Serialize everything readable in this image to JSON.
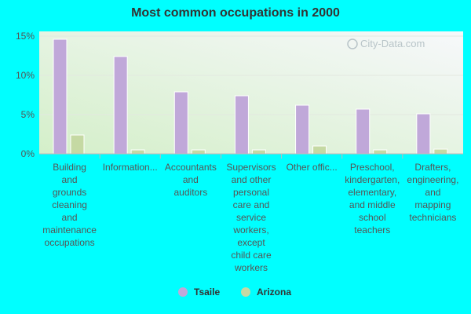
{
  "chart_data": {
    "type": "bar",
    "title": "Most common occupations in 2000",
    "categories": [
      [
        "Building",
        "and",
        "grounds",
        "cleaning",
        "and",
        "maintenance",
        "occupations"
      ],
      [
        "Information..."
      ],
      [
        "Accountants",
        "and",
        "auditors"
      ],
      [
        "Supervisors",
        "and other",
        "personal",
        "care and",
        "service",
        "workers,",
        "except",
        "child care",
        "workers"
      ],
      [
        "Other offic..."
      ],
      [
        "Preschool,",
        "kindergarten,",
        "elementary,",
        "and middle",
        "school",
        "teachers"
      ],
      [
        "Drafters,",
        "engineering,",
        "and",
        "mapping",
        "technicians"
      ]
    ],
    "series": [
      {
        "name": "Tsaile",
        "color": "#c0a8d9",
        "values": [
          14.6,
          12.4,
          7.9,
          7.4,
          6.2,
          5.7,
          5.1
        ]
      },
      {
        "name": "Arizona",
        "color": "#c5d9a3",
        "values": [
          2.4,
          0.5,
          0.5,
          0.5,
          1.0,
          0.5,
          0.6
        ]
      }
    ],
    "ylim": [
      0,
      15
    ],
    "yticks": [
      0,
      5,
      10,
      15
    ],
    "ytick_format": "%",
    "grid": true,
    "legend_position": "bottom"
  },
  "watermark": "City-Data.com"
}
